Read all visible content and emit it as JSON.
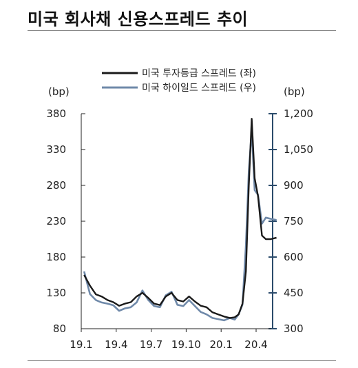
{
  "title": "미국 회사채 신용스프레드 추이",
  "chart_data": {
    "type": "line",
    "title": "미국 회사채 신용스프레드 추이",
    "left_axis_unit": "(bp)",
    "right_axis_unit": "(bp)",
    "x_ticks": [
      "19.1",
      "19.4",
      "19.7",
      "19.10",
      "20.1",
      "20.4"
    ],
    "left_ylim": [
      80,
      380
    ],
    "left_ticks": [
      "380",
      "330",
      "280",
      "230",
      "180",
      "130",
      "80"
    ],
    "right_ylim": [
      300,
      1200
    ],
    "right_ticks": [
      "1,200",
      "1,050",
      "900",
      "750",
      "600",
      "450",
      "300"
    ],
    "grid": false,
    "legend_position": "top-center",
    "series": [
      {
        "name": "미국 투자등급 스프레드 (좌)",
        "axis": "left",
        "color": "#1a1a1a",
        "x": [
          "19.1",
          "19.1",
          "19.2",
          "19.2",
          "19.3",
          "19.3",
          "19.4",
          "19.4",
          "19.5",
          "19.5",
          "19.6",
          "19.6",
          "19.7",
          "19.7",
          "19.8",
          "19.8",
          "19.9",
          "19.9",
          "19.10",
          "19.10",
          "19.11",
          "19.11",
          "19.12",
          "19.12",
          "20.1",
          "20.1",
          "20.2",
          "20.2",
          "20.2",
          "20.3",
          "20.3",
          "20.3",
          "20.3",
          "20.4",
          "20.4",
          "20.4",
          "20.5",
          "20.5"
        ],
        "y": [
          155,
          140,
          128,
          125,
          120,
          117,
          112,
          115,
          117,
          125,
          130,
          123,
          115,
          113,
          125,
          130,
          120,
          118,
          125,
          118,
          112,
          110,
          103,
          100,
          97,
          95,
          96,
          100,
          115,
          160,
          280,
          373,
          290,
          265,
          210,
          205,
          205,
          207
        ]
      },
      {
        "name": "미국 하이일드 스프레드 (우)",
        "axis": "right",
        "color": "#6f89a9",
        "x": [
          "19.1",
          "19.1",
          "19.2",
          "19.2",
          "19.3",
          "19.3",
          "19.4",
          "19.4",
          "19.5",
          "19.5",
          "19.6",
          "19.6",
          "19.7",
          "19.7",
          "19.8",
          "19.8",
          "19.9",
          "19.9",
          "19.10",
          "19.10",
          "19.11",
          "19.11",
          "19.12",
          "19.12",
          "20.1",
          "20.1",
          "20.2",
          "20.2",
          "20.2",
          "20.3",
          "20.3",
          "20.3",
          "20.3",
          "20.4",
          "20.4",
          "20.4",
          "20.5",
          "20.5"
        ],
        "y": [
          540,
          445,
          420,
          410,
          405,
          398,
          375,
          385,
          390,
          410,
          460,
          420,
          395,
          390,
          440,
          455,
          400,
          395,
          420,
          395,
          370,
          360,
          345,
          340,
          335,
          345,
          338,
          360,
          400,
          650,
          960,
          1130,
          880,
          860,
          740,
          765,
          760,
          755
        ]
      }
    ]
  }
}
